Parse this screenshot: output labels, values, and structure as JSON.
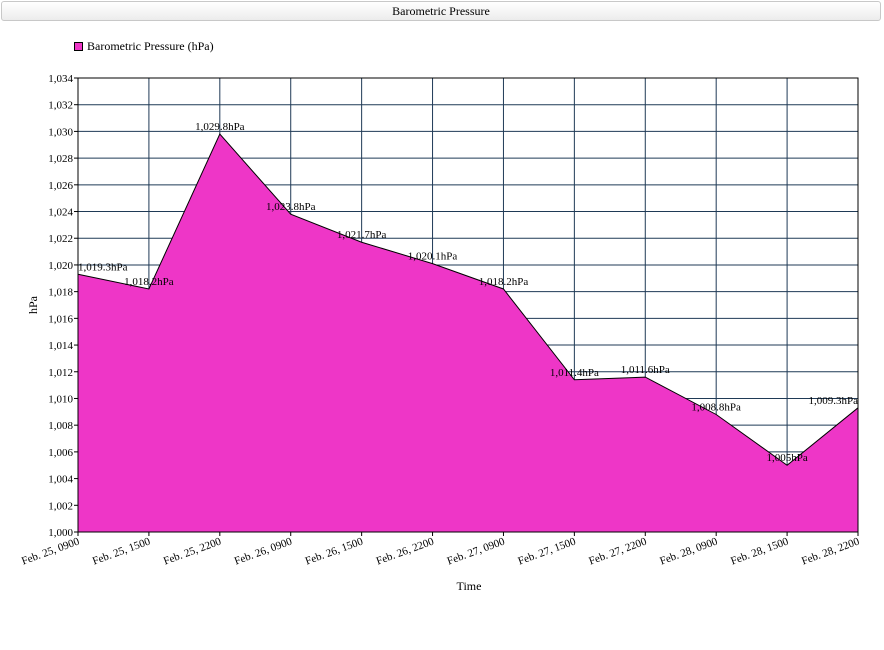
{
  "window": {
    "title": "Barometric Pressure"
  },
  "colors": {
    "area_fill": "#ee36c7",
    "area_stroke": "#000000",
    "grid": "#1f3a56",
    "plot_background": "#ffffff"
  },
  "chart_data": {
    "type": "area",
    "title": "Barometric Pressure",
    "xlabel": "Time",
    "ylabel": "hPa",
    "categories": [
      "Feb. 25, 0900",
      "Feb. 25, 1500",
      "Feb. 25, 2200",
      "Feb. 26, 0900",
      "Feb. 26, 1500",
      "Feb. 26, 2200",
      "Feb. 27, 0900",
      "Feb. 27, 1500",
      "Feb. 27, 2200",
      "Feb. 28, 0900",
      "Feb. 28, 1500",
      "Feb. 28, 2200"
    ],
    "series": [
      {
        "name": "Barometric Pressure (hPa)",
        "values": [
          1019.3,
          1018.2,
          1029.8,
          1023.8,
          1021.7,
          1020.1,
          1018.2,
          1011.4,
          1011.6,
          1008.8,
          1005,
          1009.3
        ],
        "labels": [
          "1,019.3hPa",
          "1,018.2hPa",
          "1,029.8hPa",
          "1,023.8hPa",
          "1,021.7hPa",
          "1,020.1hPa",
          "1,018.2hPa",
          "1,011.4hPa",
          "1,011.6hPa",
          "1,008.8hPa",
          "1,005hPa",
          "1,009.3hPa"
        ]
      }
    ],
    "y_ticks": [
      "1,000",
      "1,002",
      "1,004",
      "1,006",
      "1,008",
      "1,010",
      "1,012",
      "1,014",
      "1,016",
      "1,018",
      "1,020",
      "1,022",
      "1,024",
      "1,026",
      "1,028",
      "1,030",
      "1,032",
      "1,034"
    ],
    "ylim": [
      1000,
      1034
    ],
    "y_step": 2,
    "grid": true,
    "legend_position": "top-left"
  }
}
